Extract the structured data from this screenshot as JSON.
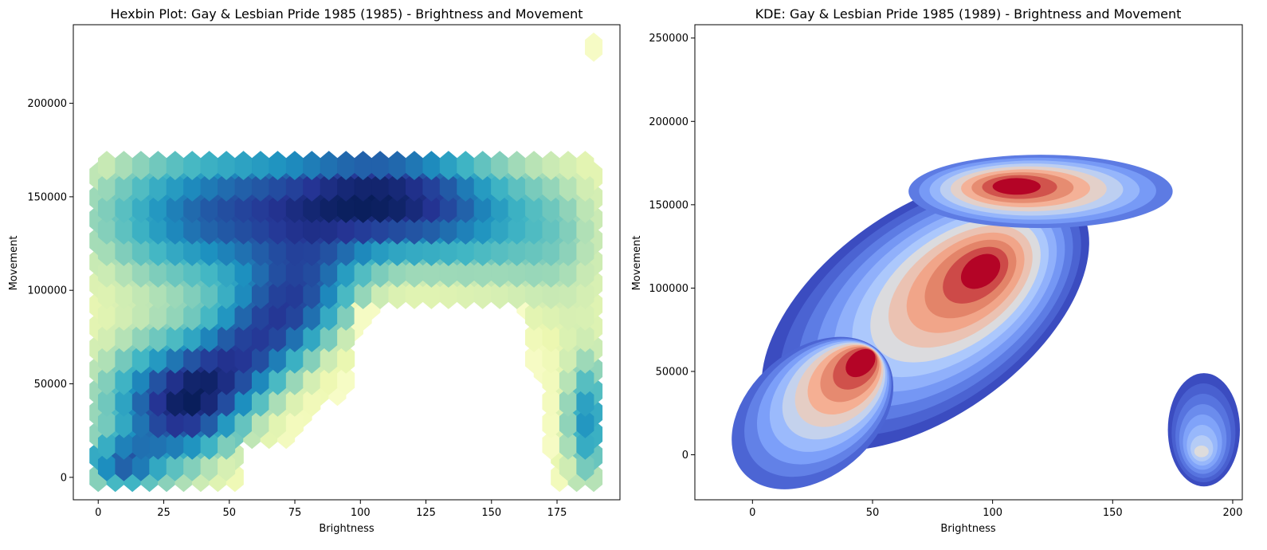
{
  "chart_data": [
    {
      "type": "hexbin",
      "title": "Hexbin Plot: Gay & Lesbian Pride 1985 (1985) - Brightness and Movement",
      "xlabel": "Brightness",
      "ylabel": "Movement",
      "xlim": [
        -9.5,
        199
      ],
      "ylim": [
        -12000,
        242000
      ],
      "xticks": [
        0,
        25,
        50,
        75,
        100,
        125,
        150,
        175
      ],
      "yticks": [
        0,
        50000,
        100000,
        150000,
        200000
      ],
      "colormap": "YlGnBu",
      "gridsize_x": 29,
      "gridsize_y": 20,
      "extent_x": [
        0,
        189
      ],
      "extent_y": [
        0,
        230000
      ],
      "legend": "none",
      "grid": false
    },
    {
      "type": "kde",
      "title": "KDE: Gay & Lesbian Pride 1985 (1989) - Brightness and Movement",
      "xlabel": "Brightness",
      "ylabel": "Movement",
      "xlim": [
        -24,
        204
      ],
      "ylim": [
        -27000,
        258000
      ],
      "xticks": [
        0,
        50,
        100,
        150,
        200
      ],
      "yticks": [
        0,
        50000,
        100000,
        150000,
        200000,
        250000
      ],
      "colormap": "coolwarm",
      "fill": true,
      "legend": "none",
      "grid": false
    }
  ]
}
